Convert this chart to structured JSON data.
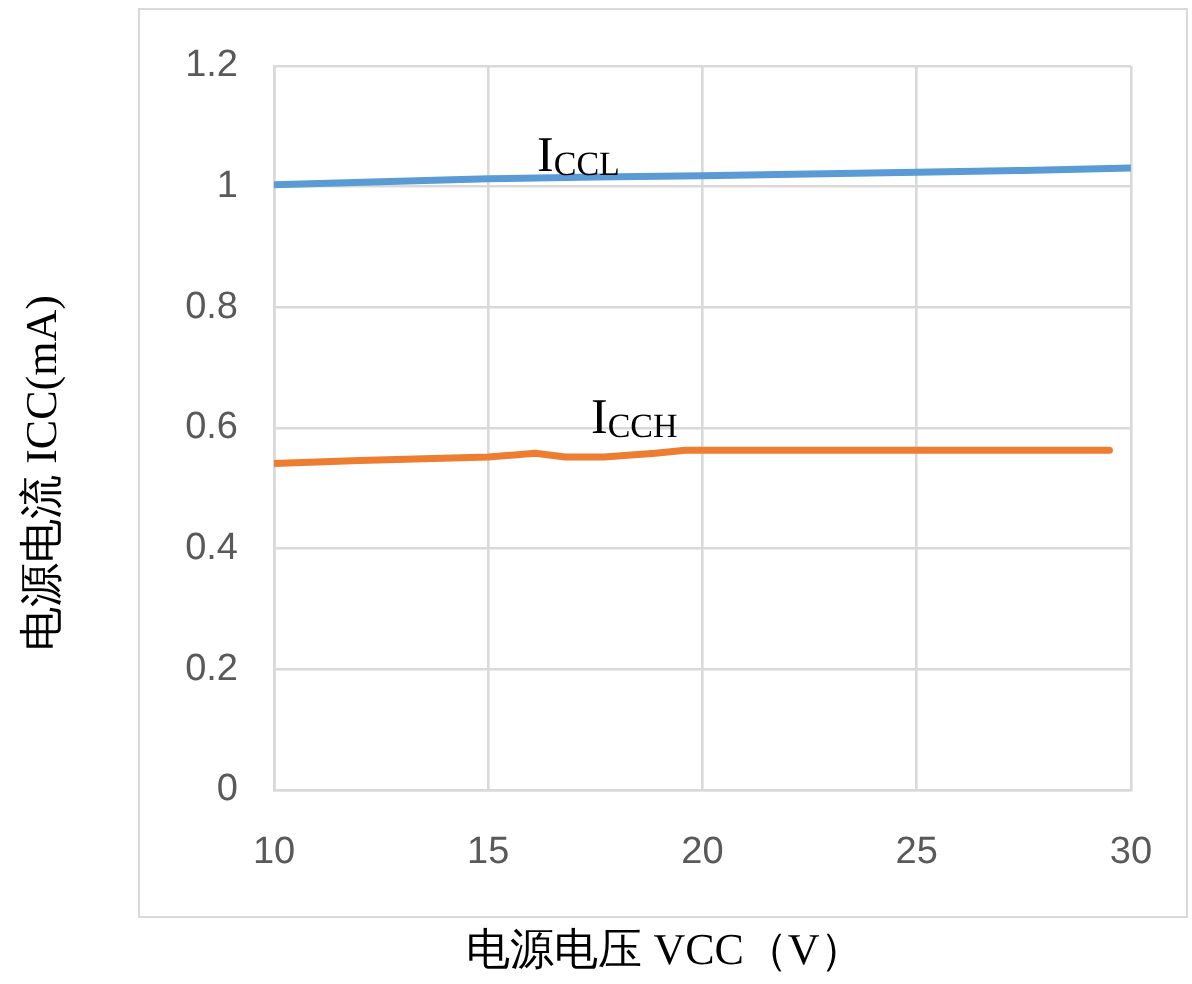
{
  "chart_data": {
    "type": "line",
    "xlabel": "电源电压 VCC（V）",
    "ylabel": "电源电流 ICC(mA)",
    "xlim": [
      10,
      30
    ],
    "xticks": [
      10,
      15,
      20,
      25,
      30
    ],
    "ylim": [
      0,
      1.2
    ],
    "yticks": [
      0,
      0.2,
      0.4,
      0.6,
      0.8,
      1,
      1.2
    ],
    "grid": true,
    "legend": false,
    "marker": "none",
    "line_style": "solid",
    "series": [
      {
        "name": "I$_{CCL}$",
        "color": "#5b9bd5",
        "x": [
          10,
          15,
          17.5,
          20,
          22.5,
          25,
          27.5,
          30
        ],
        "values": [
          1.003,
          1.013,
          1.016,
          1.018,
          1.021,
          1.024,
          1.027,
          1.031
        ]
      },
      {
        "name": "I$_{CCH}$",
        "color": "#ed7d31",
        "x": [
          10,
          12,
          15,
          16.1,
          16.8,
          17.7,
          18.9,
          19.6,
          22,
          25,
          29.5
        ],
        "values": [
          0.541,
          0.546,
          0.552,
          0.558,
          0.552,
          0.552,
          0.558,
          0.563,
          0.563,
          0.563,
          0.563
        ]
      }
    ]
  }
}
